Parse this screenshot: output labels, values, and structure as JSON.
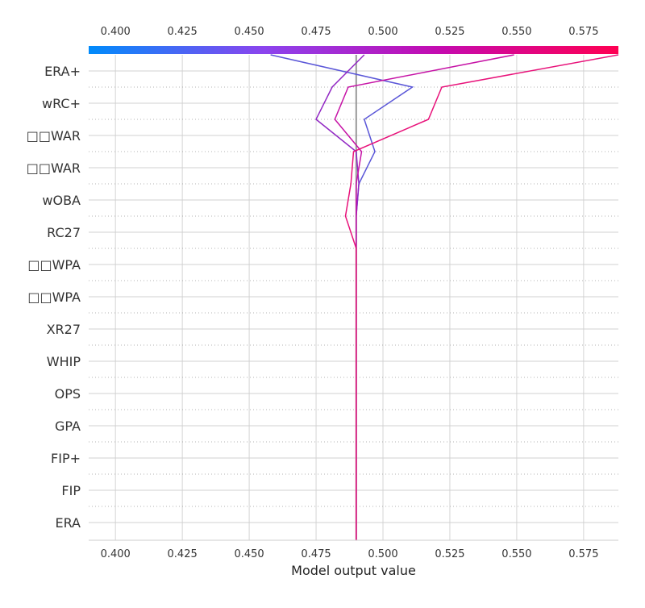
{
  "chart_data": {
    "type": "line",
    "subtype": "shap-decision-plot",
    "xlabel": "Model output value",
    "xlim": [
      0.39,
      0.588
    ],
    "x_ticks": [
      "0.400",
      "0.425",
      "0.450",
      "0.475",
      "0.500",
      "0.525",
      "0.550",
      "0.575"
    ],
    "x_tick_values": [
      0.4,
      0.425,
      0.45,
      0.475,
      0.5,
      0.525,
      0.55,
      0.575
    ],
    "base_value": 0.49,
    "features": [
      "ERA+",
      "wRC+",
      "□□WAR",
      "□□WAR",
      "wOBA",
      "RC27",
      "□□WPA",
      "□□WPA",
      "XR27",
      "WHIP",
      "OPS",
      "GPA",
      "FIP+",
      "FIP",
      "ERA"
    ],
    "grid": true,
    "colorbar": {
      "position": "top",
      "colors": [
        "#008bfb",
        "#8b44ee",
        "#c40bb0",
        "#ff0052"
      ]
    },
    "series": [
      {
        "color": "#5b57d8",
        "x_at_boundaries": [
          0.49,
          0.49,
          0.49,
          0.49,
          0.49,
          0.49,
          0.49,
          0.49,
          0.49,
          0.49,
          0.49,
          0.491,
          0.497,
          0.493,
          0.511,
          0.458
        ]
      },
      {
        "color": "#9228c4",
        "x_at_boundaries": [
          0.49,
          0.49,
          0.49,
          0.49,
          0.49,
          0.49,
          0.49,
          0.49,
          0.49,
          0.49,
          0.49,
          0.491,
          0.49,
          0.475,
          0.481,
          0.493
        ]
      },
      {
        "color": "#c613a6",
        "x_at_boundaries": [
          0.49,
          0.49,
          0.49,
          0.49,
          0.49,
          0.49,
          0.49,
          0.49,
          0.49,
          0.49,
          0.49,
          0.49,
          0.492,
          0.482,
          0.487,
          0.549
        ]
      },
      {
        "color": "#e8127a",
        "x_at_boundaries": [
          0.49,
          0.49,
          0.49,
          0.49,
          0.49,
          0.49,
          0.49,
          0.49,
          0.49,
          0.49,
          0.486,
          0.488,
          0.489,
          0.517,
          0.522,
          0.588
        ]
      }
    ]
  }
}
